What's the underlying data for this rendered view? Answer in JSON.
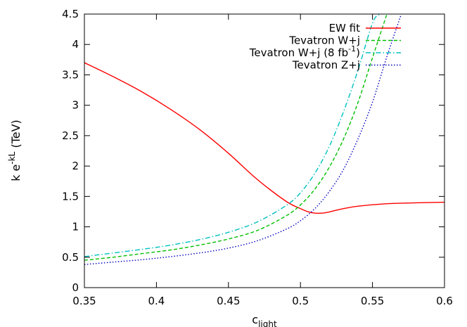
{
  "chart_data": {
    "type": "line",
    "xlabel": "c",
    "xlabel_sub": "light",
    "ylabel_prefix": "k e",
    "ylabel_sup": "-kL",
    "ylabel_suffix": " (TeV)",
    "xlim": [
      0.35,
      0.6
    ],
    "ylim": [
      0,
      4.5
    ],
    "xticks": [
      0.35,
      0.4,
      0.45,
      0.5,
      0.55,
      0.6
    ],
    "xtick_labels": [
      "0.35",
      "0.4",
      "0.45",
      "0.5",
      "0.55",
      "0.6"
    ],
    "yticks": [
      0,
      0.5,
      1,
      1.5,
      2,
      2.5,
      3,
      3.5,
      4,
      4.5
    ],
    "ytick_labels": [
      "0",
      "0.5",
      "1",
      "1.5",
      "2",
      "2.5",
      "3",
      "3.5",
      "4",
      "4.5"
    ],
    "grid": false,
    "legend_position": "top-right",
    "series": [
      {
        "name": "EW fit",
        "color": "#ff0000",
        "dash": "solid",
        "x": [
          0.35,
          0.37,
          0.39,
          0.41,
          0.43,
          0.45,
          0.47,
          0.49,
          0.5,
          0.505,
          0.51,
          0.515,
          0.52,
          0.53,
          0.54,
          0.56,
          0.58,
          0.6
        ],
        "y": [
          3.7,
          3.47,
          3.22,
          2.93,
          2.6,
          2.21,
          1.78,
          1.42,
          1.3,
          1.25,
          1.225,
          1.225,
          1.245,
          1.3,
          1.34,
          1.38,
          1.395,
          1.405
        ]
      },
      {
        "name": "Tevatron W+j",
        "color": "#00c000",
        "dash": "dashed",
        "x": [
          0.35,
          0.37,
          0.39,
          0.41,
          0.43,
          0.45,
          0.47,
          0.49,
          0.5,
          0.51,
          0.52,
          0.53,
          0.54,
          0.55,
          0.56
        ],
        "y": [
          0.45,
          0.5,
          0.56,
          0.62,
          0.7,
          0.8,
          0.94,
          1.18,
          1.36,
          1.62,
          1.98,
          2.45,
          3.05,
          3.78,
          4.5
        ]
      },
      {
        "name": "Tevatron W+j (8 fb-1)",
        "label_prefix": "Tevatron W+j (8 fb",
        "label_sup": "-1",
        "label_suffix": ")",
        "color": "#00c0c0",
        "dash": "dashdot",
        "x": [
          0.35,
          0.37,
          0.39,
          0.41,
          0.43,
          0.45,
          0.47,
          0.49,
          0.5,
          0.51,
          0.52,
          0.53,
          0.54,
          0.55,
          0.555
        ],
        "y": [
          0.51,
          0.57,
          0.63,
          0.7,
          0.79,
          0.91,
          1.08,
          1.35,
          1.56,
          1.88,
          2.32,
          2.9,
          3.58,
          4.35,
          4.5
        ]
      },
      {
        "name": "Tevatron Z+j",
        "color": "#0000c0",
        "dash": "dotted",
        "x": [
          0.35,
          0.37,
          0.39,
          0.41,
          0.43,
          0.45,
          0.47,
          0.49,
          0.5,
          0.51,
          0.52,
          0.53,
          0.54,
          0.55,
          0.56,
          0.57
        ],
        "y": [
          0.38,
          0.42,
          0.46,
          0.51,
          0.57,
          0.65,
          0.77,
          0.96,
          1.1,
          1.3,
          1.58,
          1.95,
          2.45,
          3.05,
          3.8,
          4.5
        ]
      }
    ]
  }
}
